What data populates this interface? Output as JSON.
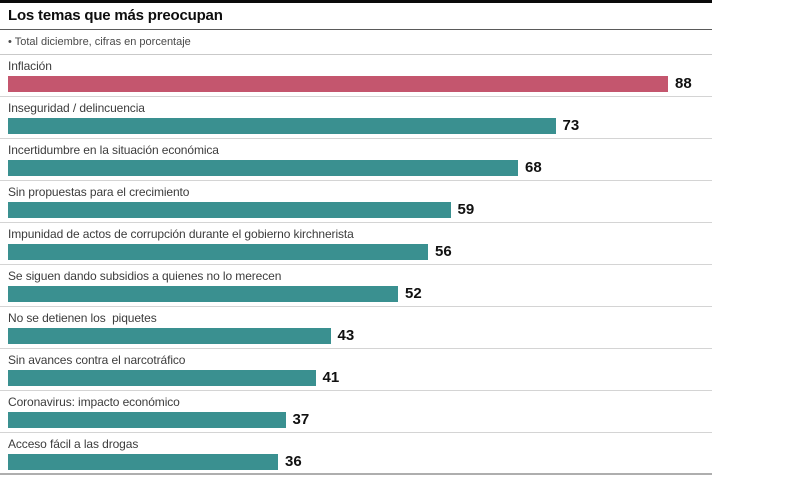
{
  "header": {
    "title": "Los temas que más preocupan",
    "subtitle": "• Total diciembre, cifras en porcentaje"
  },
  "chart_data": {
    "type": "bar",
    "orientation": "horizontal",
    "title": "Los temas que más preocupan",
    "subtitle": "• Total diciembre, cifras en porcentaje",
    "unit": "percent",
    "xlim": [
      0,
      100
    ],
    "grid": false,
    "legend": false,
    "value_labels_position": "end-of-bar",
    "categories": [
      "Inflación",
      "Inseguridad / delincuencia",
      "Incertidumbre en la situación económica",
      "Sin propuestas para el crecimiento",
      "Impunidad de actos de corrupción durante el gobierno kirchnerista",
      "Se siguen dando subsidios a quienes no lo merecen",
      "No se detienen los  piquetes",
      "Sin avances contra el narcotráfico",
      "Coronavirus: impacto económico",
      "Acceso fácil a las drogas"
    ],
    "values": [
      88,
      73,
      68,
      59,
      56,
      52,
      43,
      41,
      37,
      36
    ],
    "colors": {
      "highlight_bar": "#c4566e",
      "default_bar": "#3a9090",
      "separator": "#d4d4d4",
      "bottom_rule": "#aeaeae",
      "top_rule": "#0a0a0a"
    },
    "bars": [
      {
        "label": "Inflación",
        "value": 88,
        "color": "#c4566e"
      },
      {
        "label": "Inseguridad / delincuencia",
        "value": 73,
        "color": "#3a9090"
      },
      {
        "label": "Incertidumbre en la situación económica",
        "value": 68,
        "color": "#3a9090"
      },
      {
        "label": "Sin propuestas para el crecimiento",
        "value": 59,
        "color": "#3a9090"
      },
      {
        "label": "Impunidad de actos de corrupción durante el gobierno kirchnerista",
        "value": 56,
        "color": "#3a9090"
      },
      {
        "label": "Se siguen dando subsidios a quienes no lo merecen",
        "value": 52,
        "color": "#3a9090"
      },
      {
        "label": "No se detienen los  piquetes",
        "value": 43,
        "color": "#3a9090"
      },
      {
        "label": "Sin avances contra el narcotráfico",
        "value": 41,
        "color": "#3a9090"
      },
      {
        "label": "Coronavirus: impacto económico",
        "value": 37,
        "color": "#3a9090"
      },
      {
        "label": "Acceso fácil a las drogas",
        "value": 36,
        "color": "#3a9090"
      }
    ]
  }
}
